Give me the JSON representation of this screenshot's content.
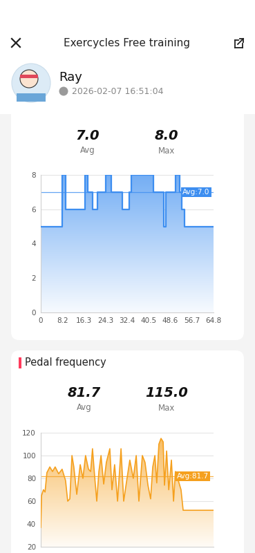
{
  "header": {
    "title": "Exercycles Free training",
    "user": "Ray",
    "datetime": "2026-02-07 16:51:04"
  },
  "chart_data": [
    {
      "type": "step",
      "stats": [
        {
          "label": "Avg",
          "value": 7.0
        },
        {
          "label": "Max",
          "value": 8.0
        }
      ],
      "x": [
        0,
        8.0,
        9.3,
        16.6,
        17.6,
        19.4,
        21.3,
        24.4,
        26.4,
        30.6,
        33.2,
        34.0,
        42.2,
        46.1,
        46.9,
        50.5,
        52.1,
        52.9,
        53.9,
        64.8
      ],
      "values": [
        5,
        8,
        6,
        8,
        7,
        6,
        7,
        8,
        7,
        6,
        7,
        8,
        7,
        5,
        7,
        8,
        7,
        6,
        5,
        5
      ],
      "color": "#3d8ef0",
      "average": {
        "value": 7.0,
        "label": "Avg:7.0"
      },
      "xlim": [
        0,
        64.8
      ],
      "xticks": [
        0,
        8.2,
        16.3,
        24.3,
        32.4,
        40.5,
        48.6,
        56.7,
        64.8
      ],
      "ylim": [
        0,
        8
      ],
      "yticks": [
        0,
        2,
        4,
        6,
        8
      ],
      "grid": true
    },
    {
      "type": "line",
      "title": "Pedal frequency",
      "stats": [
        {
          "label": "Avg",
          "value": 81.7
        },
        {
          "label": "Max",
          "value": 115.0
        }
      ],
      "x": [
        0,
        0.3,
        1.0,
        1.6,
        2.3,
        3.4,
        4.4,
        5.4,
        6.7,
        8.0,
        9.3,
        10.1,
        10.9,
        11.7,
        12.4,
        13.5,
        14.8,
        15.8,
        16.8,
        17.9,
        18.7,
        19.4,
        20.2,
        21.0,
        21.8,
        22.6,
        23.6,
        24.6,
        25.9,
        26.7,
        27.7,
        28.8,
        30.1,
        31.1,
        32.1,
        33.4,
        34.7,
        35.8,
        36.8,
        38.1,
        39.1,
        40.2,
        41.2,
        42.0,
        42.8,
        43.5,
        44.3,
        45.1,
        45.9,
        46.4,
        47.2,
        48.0,
        49.0,
        49.8,
        50.5,
        51.6,
        52.6,
        53.4,
        64.8
      ],
      "values": [
        37,
        65,
        70,
        68,
        85,
        90,
        86,
        90,
        84,
        88,
        78,
        60,
        62,
        100,
        90,
        66,
        92,
        80,
        100,
        88,
        86,
        106,
        82,
        60,
        86,
        100,
        75,
        94,
        106,
        70,
        92,
        60,
        106,
        60,
        76,
        96,
        80,
        100,
        60,
        100,
        94,
        74,
        62,
        90,
        100,
        76,
        110,
        115,
        112,
        74,
        104,
        70,
        96,
        60,
        86,
        78,
        70,
        52,
        52
      ],
      "color": "#f5a01e",
      "average": {
        "value": 81.7,
        "label": "Avg:81.7"
      },
      "xlim": [
        0,
        64.8
      ],
      "ylim": [
        20,
        120
      ],
      "yticks": [
        20,
        40,
        60,
        80,
        100,
        120
      ],
      "grid": true,
      "tick_labels": "y"
    }
  ]
}
